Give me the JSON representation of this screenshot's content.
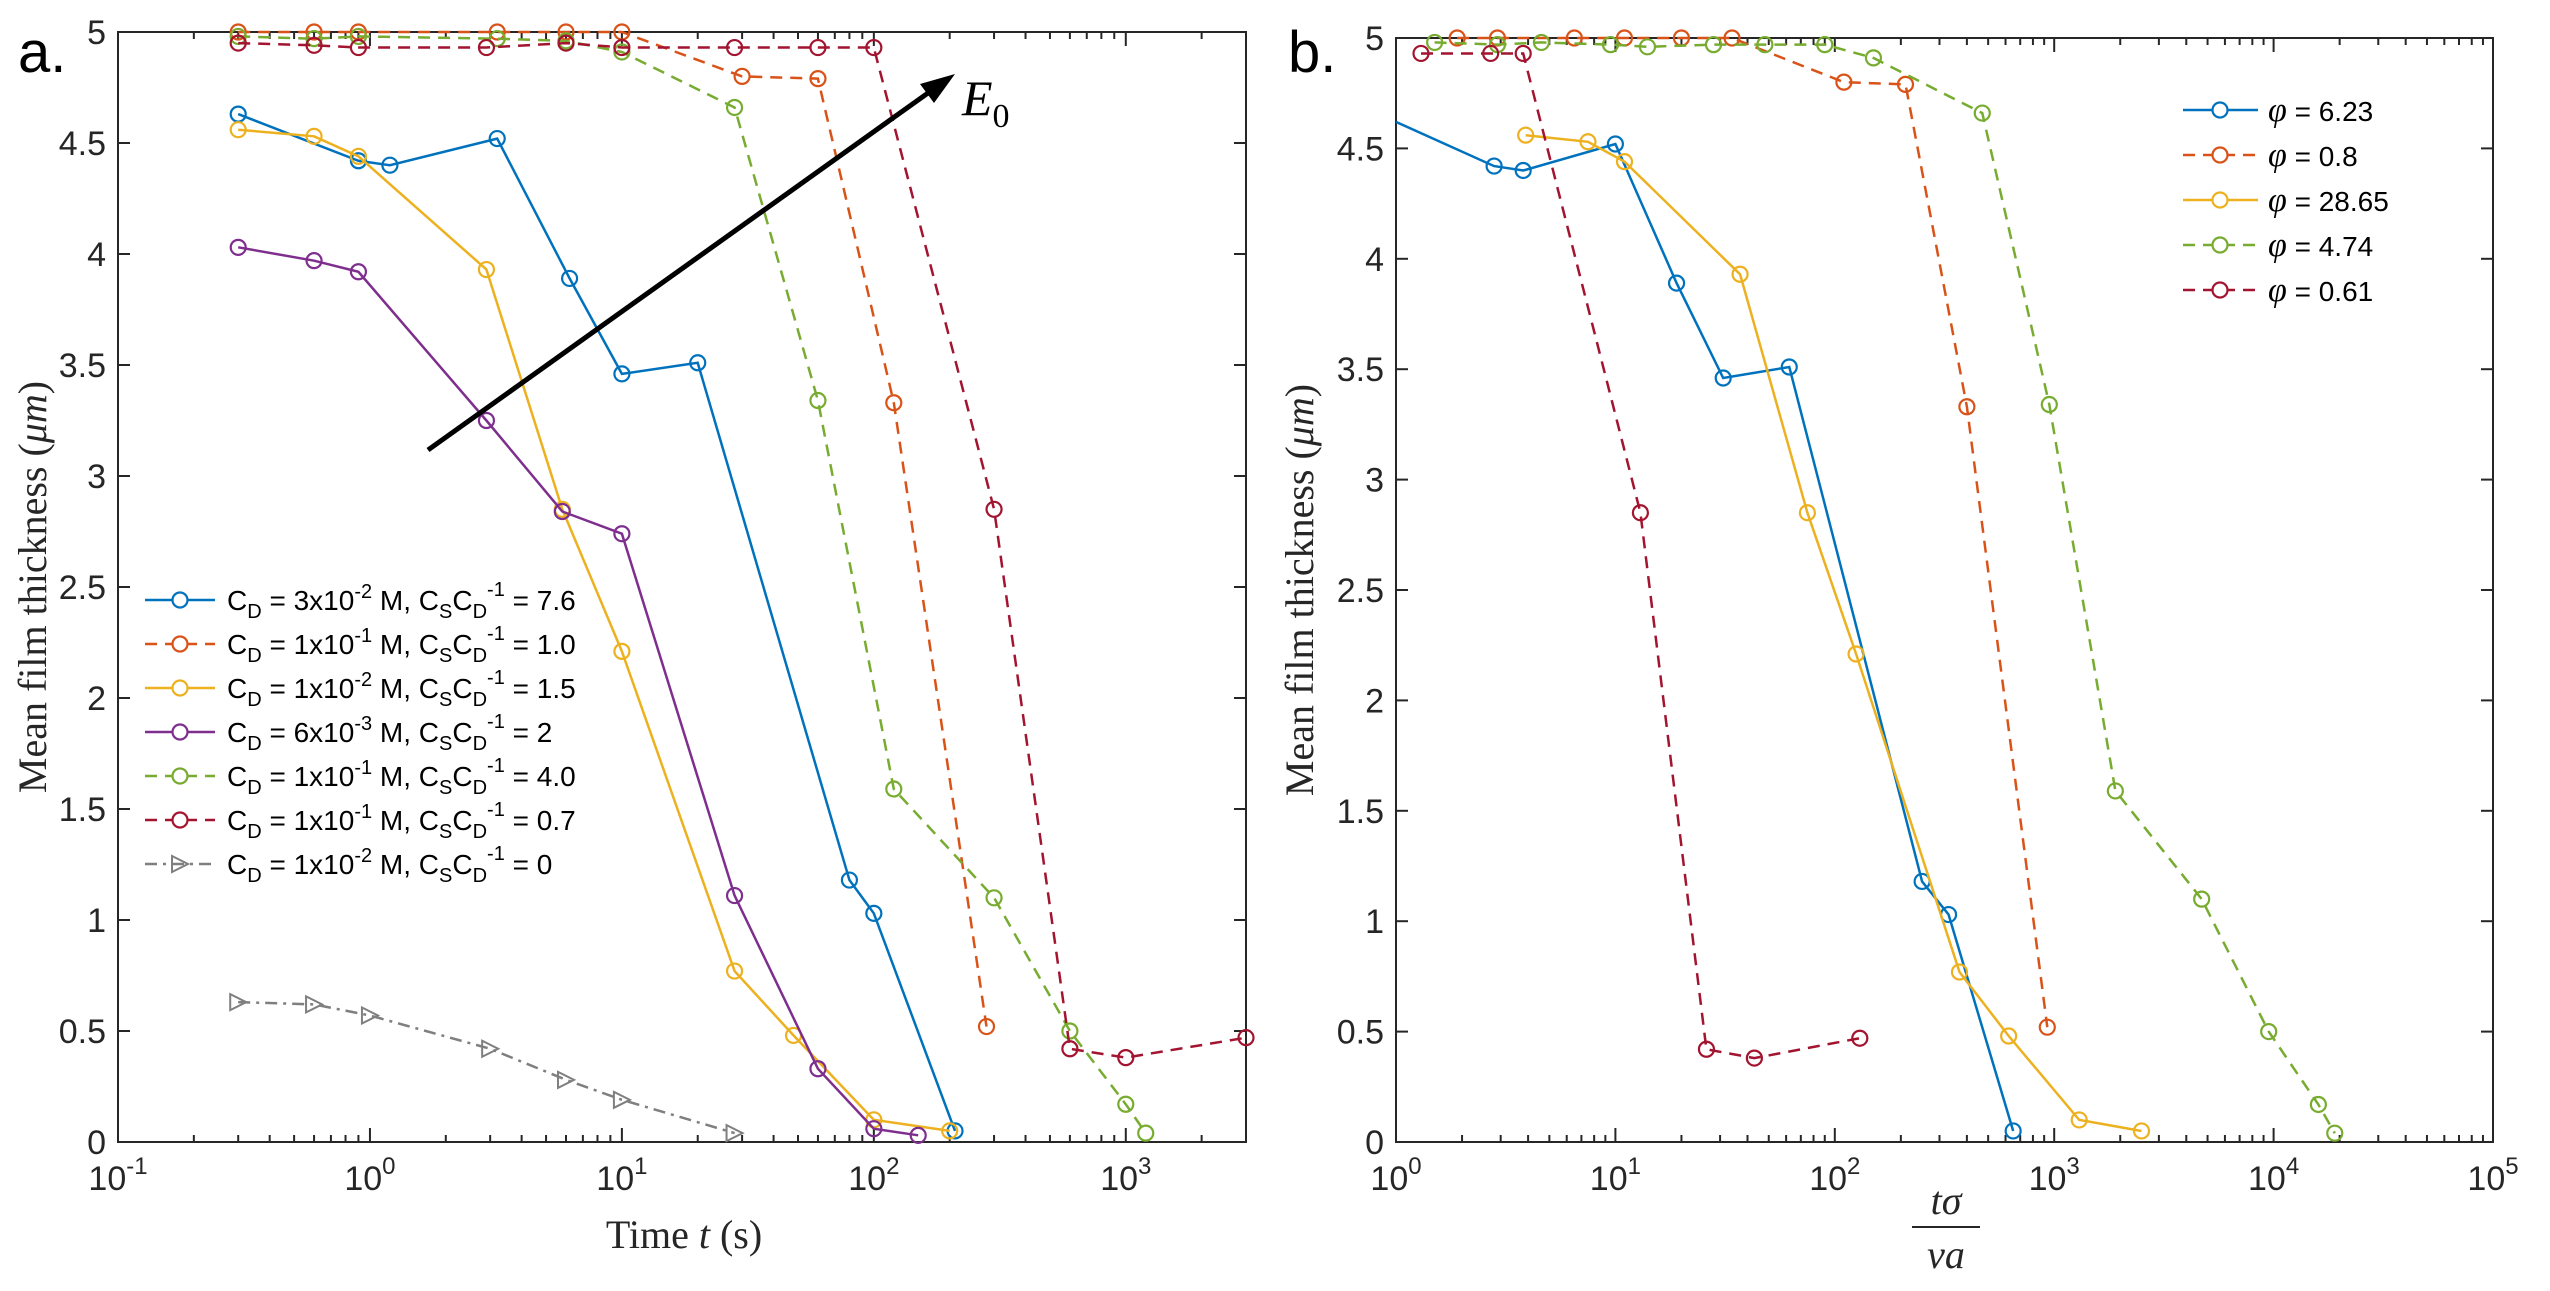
{
  "colors": {
    "blue": "#0072BD",
    "orange": "#D95319",
    "yellow": "#EDB120",
    "purple": "#7E2F8E",
    "green": "#77AC30",
    "maroon": "#A2142F",
    "gray": "#7f7f7f"
  },
  "panels": [
    {
      "panel_label": "a.",
      "annotation_label": "E",
      "annotation_sub": "0",
      "y_tick_labels": [
        "0",
        "0.5",
        "1",
        "1.5",
        "2",
        "2.5",
        "3",
        "3.5",
        "4",
        "4.5",
        "5"
      ],
      "x_tick_labels": [
        {
          "base": "10",
          "exp": "-1"
        },
        {
          "base": "10",
          "exp": "0"
        },
        {
          "base": "10",
          "exp": "1"
        },
        {
          "base": "10",
          "exp": "2"
        },
        {
          "base": "10",
          "exp": "3"
        }
      ],
      "legend": [
        {
          "pre": "C",
          "s1": "D",
          "mid": " = 3x10",
          "s2": "-2",
          "post": " M, C",
          "s3": "S",
          "c2": "C",
          "s4": "D",
          "s5": "-1",
          "tail": " = 7.6"
        },
        {
          "pre": "C",
          "s1": "D",
          "mid": " = 1x10",
          "s2": "-1",
          "post": " M, C",
          "s3": "S",
          "c2": "C",
          "s4": "D",
          "s5": "-1",
          "tail": " = 1.0"
        },
        {
          "pre": "C",
          "s1": "D",
          "mid": " = 1x10",
          "s2": "-2",
          "post": " M, C",
          "s3": "S",
          "c2": "C",
          "s4": "D",
          "s5": "-1",
          "tail": " = 1.5"
        },
        {
          "pre": "C",
          "s1": "D",
          "mid": " = 6x10",
          "s2": "-3",
          "post": " M, C",
          "s3": "S",
          "c2": "C",
          "s4": "D",
          "s5": "-1",
          "tail": " = 2"
        },
        {
          "pre": "C",
          "s1": "D",
          "mid": " = 1x10",
          "s2": "-1",
          "post": " M, C",
          "s3": "S",
          "c2": "C",
          "s4": "D",
          "s5": "-1",
          "tail": " = 4.0"
        },
        {
          "pre": "C",
          "s1": "D",
          "mid": " = 1x10",
          "s2": "-1",
          "post": " M, C",
          "s3": "S",
          "c2": "C",
          "s4": "D",
          "s5": "-1",
          "tail": " = 0.7"
        },
        {
          "pre": "C",
          "s1": "D",
          "mid": " = 1x10",
          "s2": "-2",
          "post": " M, C",
          "s3": "S",
          "c2": "C",
          "s4": "D",
          "s5": "-1",
          "tail": " = 0"
        }
      ]
    },
    {
      "panel_label": "b.",
      "y_tick_labels": [
        "0",
        "0.5",
        "1",
        "1.5",
        "2",
        "2.5",
        "3",
        "3.5",
        "4",
        "4.5",
        "5"
      ],
      "x_tick_labels": [
        {
          "base": "10",
          "exp": "0"
        },
        {
          "base": "10",
          "exp": "1"
        },
        {
          "base": "10",
          "exp": "2"
        },
        {
          "base": "10",
          "exp": "3"
        },
        {
          "base": "10",
          "exp": "4"
        },
        {
          "base": "10",
          "exp": "5"
        }
      ],
      "xlabel_num": "tσ",
      "xlabel_den": "νa",
      "legend": [
        {
          "sym": "φ",
          "text": " =  6.23"
        },
        {
          "sym": "φ",
          "text": " =  0.8"
        },
        {
          "sym": "φ",
          "text": " =  28.65"
        },
        {
          "sym": "φ",
          "text": " =  4.74"
        },
        {
          "sym": "φ",
          "text": " =  0.61"
        }
      ]
    }
  ],
  "chart_data": [
    {
      "type": "line",
      "title": "",
      "xlabel": "Time t (s)",
      "ylabel": "Mean film thickness (μm)",
      "xscale": "log",
      "xlim": [
        0.1,
        3000
      ],
      "ylim": [
        0,
        5
      ],
      "legend_position": "middle-left",
      "annotation": "arrow labeled E0 pointing toward upper right",
      "series": [
        {
          "name": "C_D = 3x10^-2 M, C_S C_D^-1 = 7.6",
          "color": "blue",
          "style": "solid",
          "marker": "circle",
          "x": [
            0.3,
            0.9,
            1.2,
            3.2,
            6.2,
            10,
            20,
            80,
            100,
            210
          ],
          "y": [
            4.63,
            4.42,
            4.4,
            4.52,
            3.89,
            3.46,
            3.51,
            1.18,
            1.03,
            0.05
          ]
        },
        {
          "name": "C_D = 1x10^-1 M, C_S C_D^-1 = 1.0",
          "color": "orange",
          "style": "dashed",
          "marker": "circle",
          "x": [
            0.3,
            0.6,
            0.9,
            3.2,
            6,
            10,
            30,
            60,
            120,
            280
          ],
          "y": [
            5.0,
            5.0,
            5.0,
            5.0,
            5.0,
            5.0,
            4.8,
            4.79,
            3.33,
            0.52
          ]
        },
        {
          "name": "C_D = 1x10^-2 M, C_S C_D^-1 = 1.5",
          "color": "yellow",
          "style": "solid",
          "marker": "circle",
          "x": [
            0.3,
            0.6,
            0.9,
            2.9,
            5.8,
            10,
            28,
            48,
            100,
            200
          ],
          "y": [
            4.56,
            4.53,
            4.44,
            3.93,
            2.85,
            2.21,
            0.77,
            0.48,
            0.1,
            0.05
          ]
        },
        {
          "name": "C_D = 6x10^-3 M, C_S C_D^-1 = 2",
          "color": "purple",
          "style": "solid",
          "marker": "circle",
          "x": [
            0.3,
            0.6,
            0.9,
            2.9,
            5.8,
            10,
            28,
            60,
            100,
            150
          ],
          "y": [
            4.03,
            3.97,
            3.92,
            3.25,
            2.84,
            2.74,
            1.11,
            0.33,
            0.06,
            0.03
          ]
        },
        {
          "name": "C_D = 1x10^-1 M, C_S C_D^-1 = 4.0",
          "color": "green",
          "style": "dashed",
          "marker": "circle",
          "x": [
            0.3,
            0.6,
            0.9,
            3.2,
            6,
            10,
            28,
            60,
            120,
            300,
            600,
            1000,
            1200
          ],
          "y": [
            4.98,
            4.97,
            4.98,
            4.97,
            4.96,
            4.91,
            4.66,
            3.34,
            1.59,
            1.1,
            0.5,
            0.17,
            0.04
          ]
        },
        {
          "name": "C_D = 1x10^-1 M, C_S C_D^-1 = 0.7",
          "color": "maroon",
          "style": "dashed",
          "marker": "circle",
          "x": [
            0.3,
            0.6,
            0.9,
            2.9,
            6,
            10,
            28,
            60,
            100,
            300,
            600,
            1000,
            3000
          ],
          "y": [
            4.95,
            4.94,
            4.93,
            4.93,
            4.95,
            4.93,
            4.93,
            4.93,
            4.93,
            2.85,
            0.42,
            0.38,
            0.47
          ]
        },
        {
          "name": "C_D = 1x10^-2 M, C_S C_D^-1 = 0",
          "color": "gray",
          "style": "dashdot",
          "marker": "triangle-right",
          "x": [
            0.3,
            0.6,
            1.0,
            3.0,
            6.0,
            10,
            28
          ],
          "y": [
            0.63,
            0.62,
            0.57,
            0.42,
            0.28,
            0.19,
            0.04
          ]
        }
      ]
    },
    {
      "type": "line",
      "title": "",
      "xlabel": "tσ / νa",
      "ylabel": "Mean film thickness (μm)",
      "xscale": "log",
      "xlim": [
        1,
        100000
      ],
      "ylim": [
        0,
        5
      ],
      "legend_position": "top-right",
      "series": [
        {
          "name": "φ = 6.23",
          "color": "blue",
          "style": "solid",
          "marker": "circle",
          "x": [
            1,
            2.8,
            3.8,
            10,
            19,
            31,
            62,
            250,
            330,
            650
          ],
          "y": [
            4.62,
            4.42,
            4.4,
            4.52,
            3.89,
            3.46,
            3.51,
            1.18,
            1.03,
            0.05
          ]
        },
        {
          "name": "φ = 0.8",
          "color": "orange",
          "style": "dashed",
          "marker": "circle",
          "x": [
            1.9,
            2.9,
            6.5,
            11,
            20,
            34,
            110,
            210,
            400,
            930
          ],
          "y": [
            5.0,
            5.0,
            5.0,
            5.0,
            5.0,
            5.0,
            4.8,
            4.79,
            3.33,
            0.52
          ]
        },
        {
          "name": "φ = 28.65",
          "color": "yellow",
          "style": "solid",
          "marker": "circle",
          "x": [
            3.9,
            7.5,
            11,
            37,
            75,
            125,
            370,
            620,
            1300,
            2500
          ],
          "y": [
            4.56,
            4.53,
            4.44,
            3.93,
            2.85,
            2.21,
            0.77,
            0.48,
            0.1,
            0.05
          ]
        },
        {
          "name": "φ = 4.74",
          "color": "green",
          "style": "dashed",
          "marker": "circle",
          "x": [
            1.5,
            2.9,
            4.6,
            9.5,
            14,
            28,
            48,
            90,
            150,
            470,
            950,
            1900,
            4700,
            9500,
            16000,
            19000
          ],
          "y": [
            4.98,
            4.97,
            4.98,
            4.97,
            4.96,
            4.97,
            4.97,
            4.97,
            4.91,
            4.66,
            3.34,
            1.59,
            1.1,
            0.5,
            0.17,
            0.04
          ]
        },
        {
          "name": "φ = 0.61",
          "color": "maroon",
          "style": "dashed",
          "marker": "circle",
          "x": [
            1.3,
            2.7,
            3.8,
            13,
            26,
            43,
            130
          ],
          "y": [
            4.93,
            4.93,
            4.93,
            2.85,
            0.42,
            0.38,
            0.47
          ]
        }
      ]
    }
  ]
}
